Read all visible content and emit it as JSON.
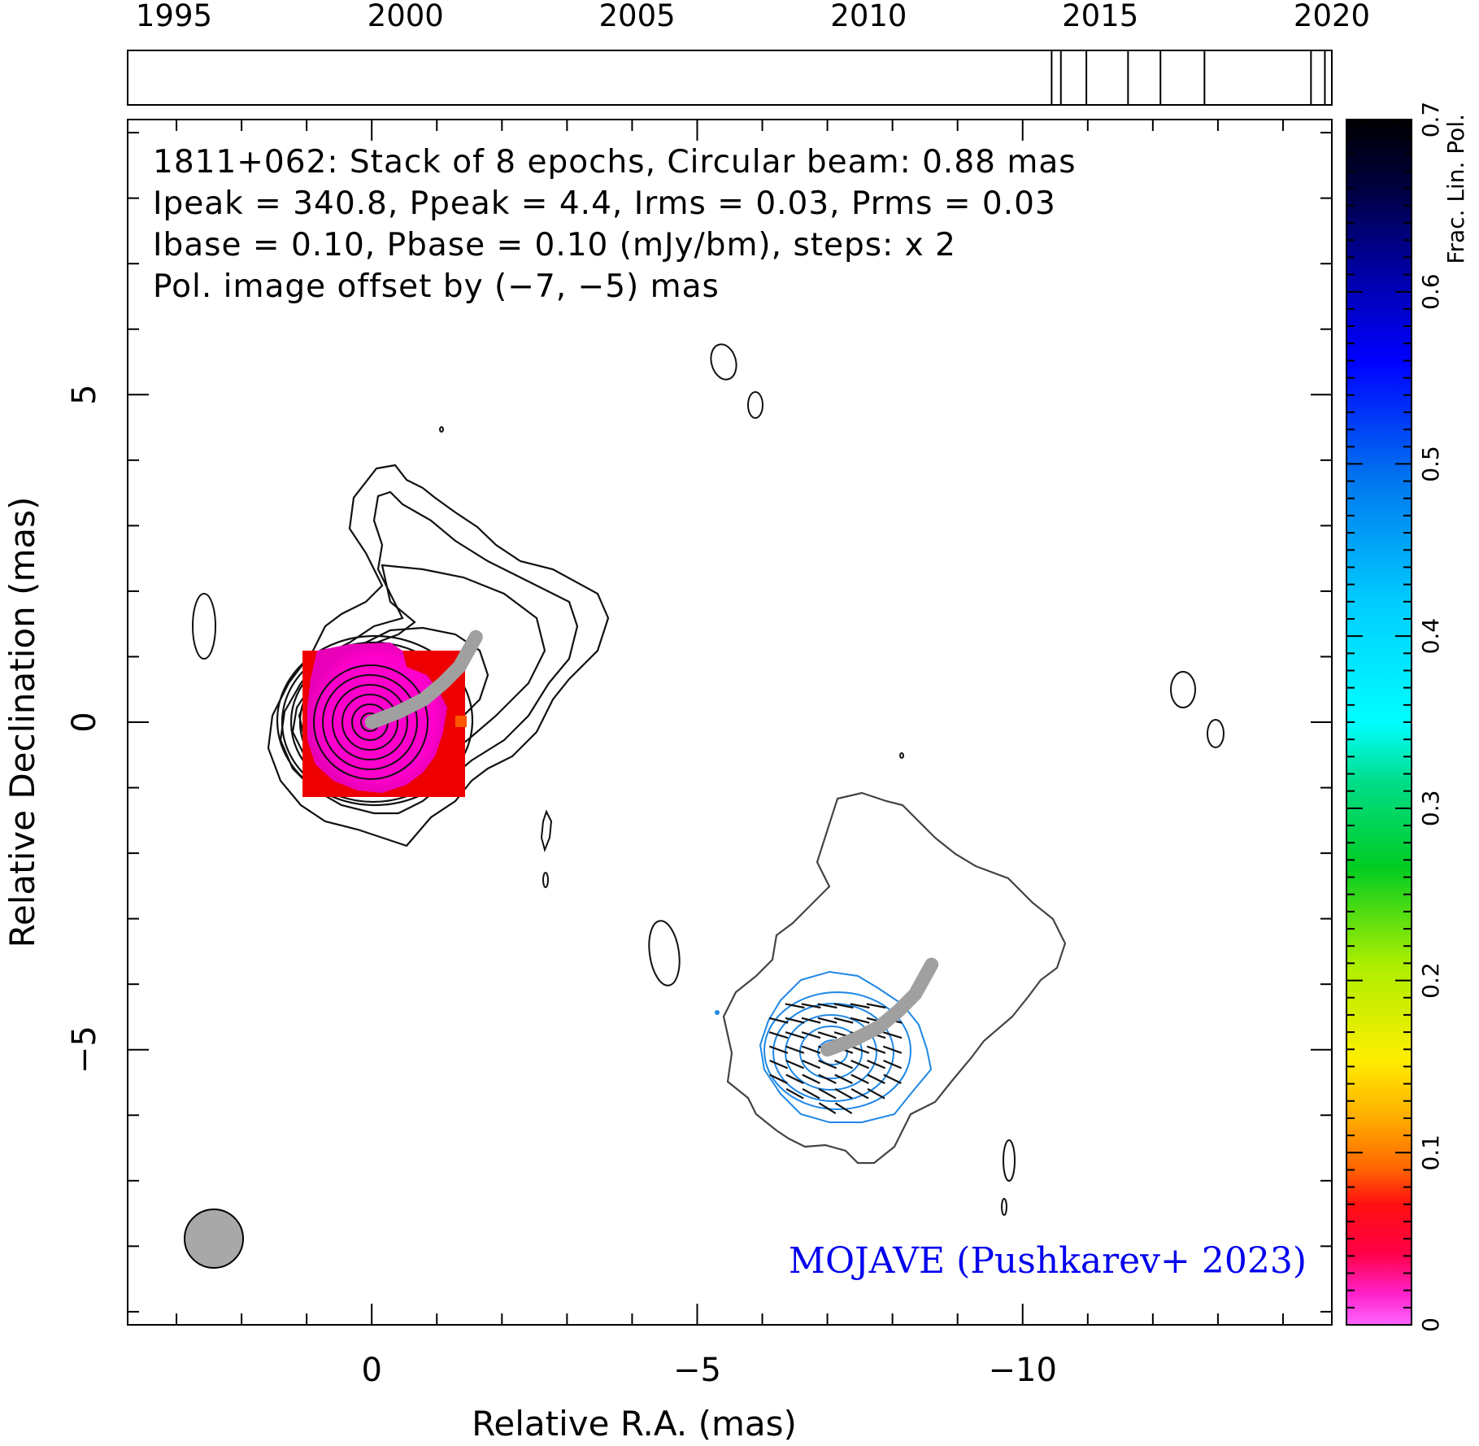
{
  "chart_data": {
    "type": "contour",
    "source": "1811+062",
    "header_lines": [
      "1811+062: Stack of 8 epochs, Circular beam: 0.88 mas",
      "Ipeak = 340.8, Ppeak = 4.4, Irms = 0.03, Prms = 0.03",
      "Ibase = 0.10, Pbase = 0.10 (mJy/bm), steps: x 2"
    ],
    "offset_note": "Pol. image offset by (−7, −5) mas",
    "credit": "MOJAVE (Pushkarev+ 2023)",
    "xlabel": "Relative R.A. (mas)",
    "ylabel": "Relative Declination (mas)",
    "xlim": [
      3.75,
      -14.75
    ],
    "ylim": [
      -9.2,
      9.2
    ],
    "x_ticks": [
      0,
      -5,
      -10
    ],
    "x_tick_labels": [
      "0",
      "−5",
      "−10"
    ],
    "y_ticks": [
      5,
      0,
      -5
    ],
    "y_tick_labels": [
      "5",
      "0",
      "−5"
    ],
    "beam_fwhm_mas": 0.88,
    "stokes_i_peak": 340.8,
    "pol_peak": 4.4,
    "i_rms": 0.03,
    "p_rms": 0.03,
    "i_base": 0.1,
    "p_base": 0.1,
    "units": "mJy/bm",
    "contour_step_factor": 2,
    "pol_offset_mas": [
      -7,
      -5
    ],
    "colorbar": {
      "label": "Frac. Lin. Pol.",
      "min": 0,
      "max": 0.7,
      "ticks": [
        0,
        0.1,
        0.2,
        0.3,
        0.4,
        0.5,
        0.6,
        0.7
      ],
      "tick_labels": [
        "0",
        "0.1",
        "0.2",
        "0.3",
        "0.4",
        "0.5",
        "0.6",
        "0.7"
      ]
    },
    "timeline": {
      "years": [
        1995,
        2000,
        2005,
        2010,
        2015,
        2020
      ],
      "year_labels": [
        "1995",
        "2000",
        "2005",
        "2010",
        "2015",
        "2020"
      ],
      "range": [
        1994,
        2020
      ],
      "epochs": [
        2013.95,
        2014.15,
        2014.7,
        2015.6,
        2016.3,
        2017.25,
        2019.55,
        2019.85
      ]
    },
    "jet_ridgeline": [
      [
        0,
        0
      ],
      [
        -0.4,
        0.15
      ],
      [
        -0.8,
        0.35
      ],
      [
        -1.1,
        0.6
      ],
      [
        -1.35,
        0.85
      ],
      [
        -1.6,
        1.3
      ]
    ],
    "pol_fraction_core": "0.01 – 0.06"
  },
  "colors": {
    "axes": "#000000",
    "pol_contours": "#1e88e5",
    "offset_note": "#1e88e5",
    "credit": "#0000ee",
    "ridgeline": "#a0a0a0",
    "beam_fill": "#a8a8a8",
    "stokes_contours": "#111111",
    "outer_pol_contour": "#444444"
  }
}
